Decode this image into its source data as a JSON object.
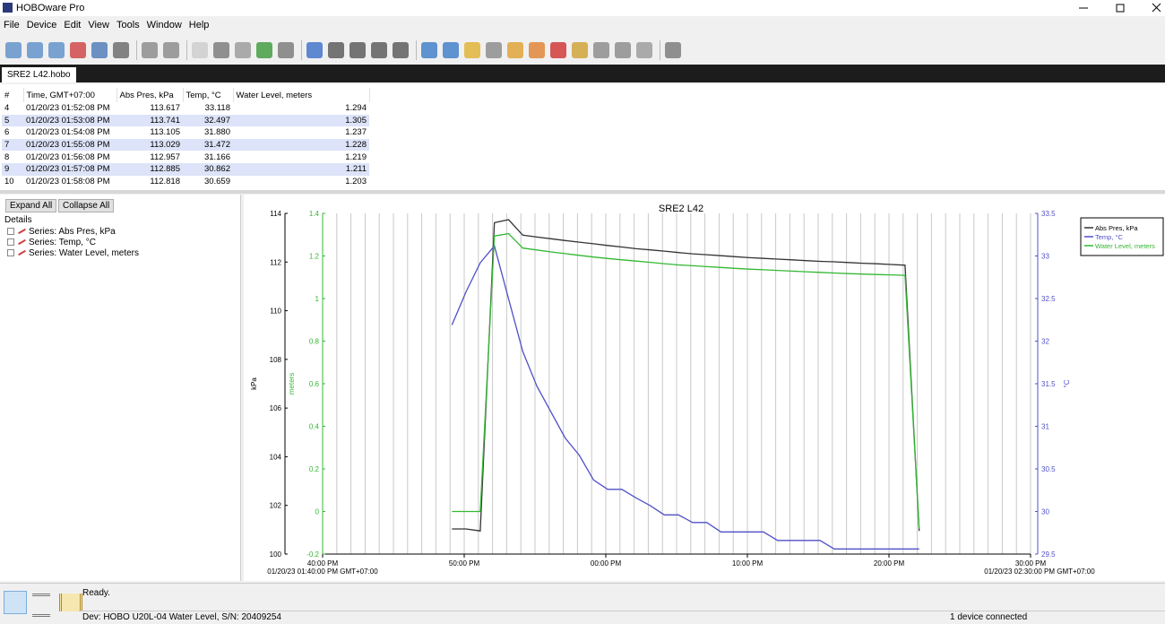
{
  "window": {
    "title": "HOBOware Pro"
  },
  "menu": [
    "File",
    "Device",
    "Edit",
    "View",
    "Tools",
    "Window",
    "Help"
  ],
  "tab": "SRE2 L42.hobo",
  "table": {
    "headers": [
      "#",
      "Time, GMT+07:00",
      "Abs Pres, kPa",
      "Temp, °C",
      "Water Level, meters"
    ],
    "rows": [
      [
        "4",
        "01/20/23 01:52:08 PM",
        "113.617",
        "33.118",
        "1.294"
      ],
      [
        "5",
        "01/20/23 01:53:08 PM",
        "113.741",
        "32.497",
        "1.305"
      ],
      [
        "6",
        "01/20/23 01:54:08 PM",
        "113.105",
        "31.880",
        "1.237"
      ],
      [
        "7",
        "01/20/23 01:55:08 PM",
        "113.029",
        "31.472",
        "1.228"
      ],
      [
        "8",
        "01/20/23 01:56:08 PM",
        "112.957",
        "31.166",
        "1.219"
      ],
      [
        "9",
        "01/20/23 01:57:08 PM",
        "112.885",
        "30.862",
        "1.211"
      ],
      [
        "10",
        "01/20/23 01:58:08 PM",
        "112.818",
        "30.659",
        "1.203"
      ]
    ]
  },
  "tree": {
    "buttons": [
      "Expand All",
      "Collapse All"
    ],
    "label": "Details",
    "items": [
      "Series: Abs Pres, kPa",
      "Series: Temp, °C",
      "Series: Water Level, meters"
    ]
  },
  "chart_data": {
    "type": "line",
    "title": "SRE2 L42",
    "ylabel": "kPa",
    "y2label": "meters",
    "y3label": "°C",
    "xlim": [
      "01/20/23 01:40:00 PM GMT+07:00",
      "01/20/23 02:30:00 PM GMT+07:00"
    ],
    "xticks": [
      {
        "value": "01/20/23 01:40:00 PM",
        "label": "40:00 PM"
      },
      {
        "value": "01/20/23 01:50:00 PM",
        "label": "50:00 PM"
      },
      {
        "value": "01/20/23 02:00:00 PM",
        "label": "00:00 PM"
      },
      {
        "value": "01/20/23 02:10:00 PM",
        "label": "10:00 PM"
      },
      {
        "value": "01/20/23 02:20:00 PM",
        "label": "20:00 PM"
      },
      {
        "value": "01/20/23 02:30:00 PM",
        "label": "30:00 PM"
      }
    ],
    "ylim": [
      100,
      114
    ],
    "yticks": [
      100,
      102,
      104,
      106,
      108,
      110,
      112,
      114
    ],
    "y2lim": [
      -0.2,
      1.4
    ],
    "y2ticks": [
      -0.2,
      0,
      0.2,
      0.4,
      0.6,
      0.8,
      1,
      1.2,
      1.4
    ],
    "y3lim": [
      29.5,
      33.5
    ],
    "y3ticks": [
      29.5,
      30,
      30.5,
      31,
      31.5,
      32,
      32.5,
      33,
      33.5
    ],
    "grid": true,
    "legend": "top-right",
    "x": [
      "01/20/23 01:49:08 PM",
      "01/20/23 01:50:08 PM",
      "01/20/23 01:51:08 PM",
      "01/20/23 01:52:08 PM",
      "01/20/23 01:53:08 PM",
      "01/20/23 01:54:08 PM",
      "01/20/23 01:55:08 PM",
      "01/20/23 01:56:08 PM",
      "01/20/23 01:57:08 PM",
      "01/20/23 01:58:08 PM",
      "01/20/23 01:59:08 PM",
      "01/20/23 02:00:08 PM",
      "01/20/23 02:01:08 PM",
      "01/20/23 02:02:08 PM",
      "01/20/23 02:03:08 PM",
      "01/20/23 02:04:08 PM",
      "01/20/23 02:05:08 PM",
      "01/20/23 02:06:08 PM",
      "01/20/23 02:07:08 PM",
      "01/20/23 02:08:08 PM",
      "01/20/23 02:09:08 PM",
      "01/20/23 02:10:08 PM",
      "01/20/23 02:11:08 PM",
      "01/20/23 02:12:08 PM",
      "01/20/23 02:13:08 PM",
      "01/20/23 02:14:08 PM",
      "01/20/23 02:15:08 PM",
      "01/20/23 02:16:08 PM",
      "01/20/23 02:17:08 PM",
      "01/20/23 02:18:08 PM",
      "01/20/23 02:19:08 PM",
      "01/20/23 02:20:08 PM",
      "01/20/23 02:21:08 PM",
      "01/20/23 02:22:08 PM"
    ],
    "series": [
      {
        "name": "Abs Pres, kPa",
        "color": "#333333",
        "axis": "y",
        "values": [
          101.03,
          101.03,
          100.95,
          113.617,
          113.741,
          113.105,
          113.029,
          112.957,
          112.885,
          112.818,
          112.75,
          112.68,
          112.62,
          112.55,
          112.5,
          112.45,
          112.39,
          112.34,
          112.3,
          112.26,
          112.22,
          112.18,
          112.15,
          112.12,
          112.09,
          112.06,
          112.03,
          112.01,
          111.98,
          111.95,
          111.93,
          111.9,
          111.87,
          100.95
        ]
      },
      {
        "name": "Temp, °C",
        "color": "#5050c8",
        "axis": "y3",
        "values": [
          32.19,
          32.58,
          32.92,
          33.118,
          32.497,
          31.88,
          31.472,
          31.166,
          30.862,
          30.659,
          30.37,
          30.26,
          30.26,
          30.16,
          30.07,
          29.96,
          29.96,
          29.87,
          29.87,
          29.76,
          29.76,
          29.76,
          29.76,
          29.66,
          29.66,
          29.66,
          29.66,
          29.56,
          29.56,
          29.56,
          29.56,
          29.56,
          29.56,
          29.56
        ]
      },
      {
        "name": "Water Level, meters",
        "color": "#33b833",
        "axis": "y2",
        "values": [
          0,
          0,
          0,
          1.294,
          1.305,
          1.237,
          1.228,
          1.219,
          1.211,
          1.203,
          1.195,
          1.188,
          1.182,
          1.176,
          1.17,
          1.164,
          1.158,
          1.154,
          1.15,
          1.146,
          1.142,
          1.138,
          1.135,
          1.132,
          1.129,
          1.126,
          1.123,
          1.12,
          1.117,
          1.115,
          1.113,
          1.111,
          1.109,
          -0.08
        ]
      }
    ]
  },
  "status": {
    "ready": "Ready.",
    "device": "Dev: HOBO U20L-04 Water Level, S/N: 20409254",
    "connected": "1 device connected"
  }
}
